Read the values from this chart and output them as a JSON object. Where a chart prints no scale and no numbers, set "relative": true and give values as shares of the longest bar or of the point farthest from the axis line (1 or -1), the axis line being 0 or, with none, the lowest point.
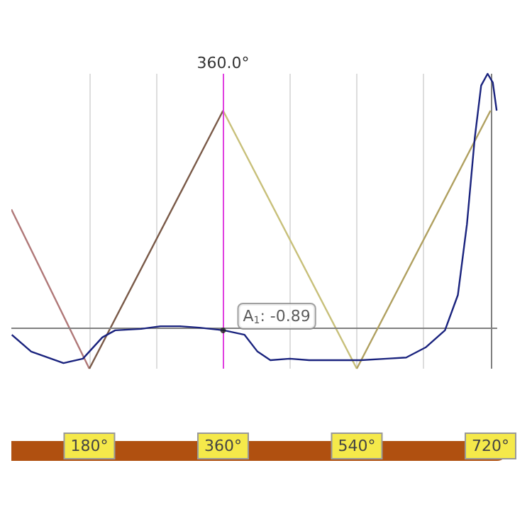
{
  "chart_data": {
    "type": "line",
    "relative": true,
    "xlim": [
      75,
      729
    ],
    "xticks": [
      {
        "value": 180,
        "label": "180°"
      },
      {
        "value": 270,
        "label": null
      },
      {
        "value": 360,
        "label": "360°"
      },
      {
        "value": 450,
        "label": null
      },
      {
        "value": 540,
        "label": "540°"
      },
      {
        "value": 630,
        "label": null
      },
      {
        "value": 720,
        "label": "720°"
      }
    ],
    "grid": "x",
    "marker": "none",
    "line_style": "solid",
    "series": [
      {
        "color": "#b07878",
        "x": [
          75,
          180
        ],
        "values": [
          0.54,
          0
        ]
      },
      {
        "color": "#7a5a48",
        "x": [
          180,
          360
        ],
        "values": [
          0,
          0.875
        ]
      },
      {
        "color": "#c8c07a",
        "x": [
          360,
          540
        ],
        "values": [
          0.875,
          0
        ]
      },
      {
        "color": "#b0a060",
        "x": [
          540,
          720
        ],
        "values": [
          0,
          0.875
        ]
      },
      {
        "color": "#1a237e",
        "x": [
          75.6,
          101.7,
          145.2,
          171.3,
          197.4,
          214.8,
          249.6,
          275.7,
          301.9,
          328,
          361,
          388.9,
          406.3,
          423.7,
          449.8,
          475.9,
          510.7,
          545.5,
          580.4,
          606.5,
          632.6,
          658.7,
          676.1,
          688.3,
          698.7,
          707.4,
          716.1,
          723.1,
          728.3
        ],
        "values": [
          0.115,
          0.058,
          0.019,
          0.034,
          0.106,
          0.13,
          0.135,
          0.144,
          0.144,
          0.139,
          0.13,
          0.115,
          0.058,
          0.029,
          0.034,
          0.029,
          0.029,
          0.029,
          0.034,
          0.038,
          0.072,
          0.13,
          0.25,
          0.49,
          0.78,
          0.96,
          1,
          0.97,
          0.875
        ]
      }
    ],
    "ref_lines": [
      {
        "axis": "x",
        "value": 360,
        "label": "360.0°",
        "color": "#e040e0"
      },
      {
        "axis": "x",
        "value": 720,
        "label": null,
        "color": "#808080"
      },
      {
        "axis": "y",
        "value": 0.14,
        "label": null,
        "color": "#808080"
      }
    ],
    "annotations": [
      {
        "text": "A$_{1}$: -0.89",
        "x": 360,
        "y": 0.13
      }
    ]
  }
}
